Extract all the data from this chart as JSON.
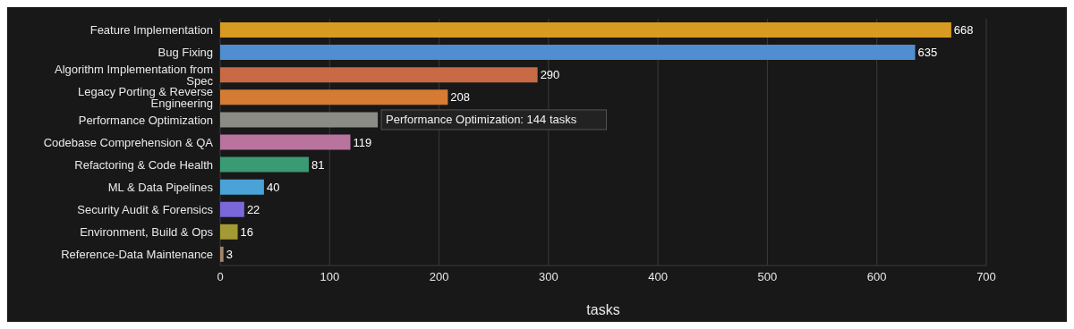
{
  "chart_data": {
    "type": "bar",
    "orientation": "horizontal",
    "xlabel": "tasks",
    "categories": [
      "Feature Implementation",
      "Bug Fixing",
      "Algorithm Implementation from Spec",
      "Legacy Porting & Reverse Engineering",
      "Performance Optimization",
      "Codebase Comprehension & QA",
      "Refactoring & Code Health",
      "ML & Data Pipelines",
      "Security Audit & Forensics",
      "Environment, Build & Ops",
      "Reference-Data Maintenance"
    ],
    "values": [
      668,
      635,
      290,
      208,
      144,
      119,
      81,
      40,
      22,
      16,
      3
    ],
    "colors": [
      "#d89b22",
      "#4f8fd1",
      "#c76a45",
      "#d57b33",
      "#8c8c86",
      "#b8749e",
      "#3a9a73",
      "#4aa3d6",
      "#7a67d9",
      "#a39a34",
      "#a0856a"
    ],
    "value_labels": [
      "668",
      "635",
      "290",
      "208",
      null,
      "119",
      "81",
      "40",
      "22",
      "16",
      "3"
    ],
    "annotations": [
      {
        "text": "Performance Optimization: 144 tasks",
        "x": 144,
        "y": "Performance Optimization"
      }
    ],
    "xlim": [
      0,
      700
    ],
    "xticks": [
      0,
      100,
      200,
      300,
      400,
      500,
      600,
      700
    ],
    "grid": "x",
    "legend": false
  }
}
